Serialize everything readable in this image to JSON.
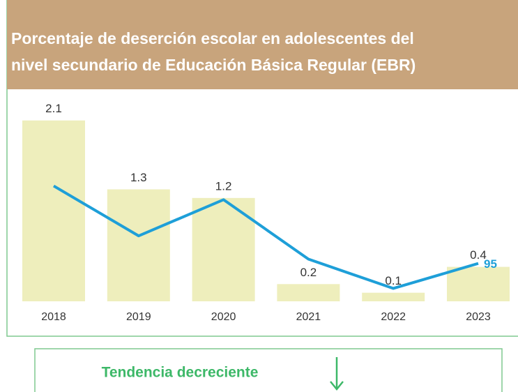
{
  "chart_data": {
    "type": "bar-line",
    "title": [
      "Porcentaje de deserción escolar en adolescentes del",
      "nivel secundario de Educación Básica Regular (EBR)"
    ],
    "categories": [
      "2018",
      "2019",
      "2020",
      "2021",
      "2022",
      "2023"
    ],
    "series": [
      {
        "type": "bar",
        "color": "#eeeebc",
        "values": [
          2.1,
          1.3,
          1.2,
          0.2,
          0.1,
          0.4
        ]
      },
      {
        "type": "line",
        "color": "#1e9fd8",
        "values": [
          1.34,
          0.76,
          1.18,
          0.49,
          0.15,
          0.44
        ]
      }
    ],
    "annotation": "95",
    "ylim": [
      0,
      2.3
    ]
  },
  "footer": {
    "text": "Tendencia decreciente"
  }
}
